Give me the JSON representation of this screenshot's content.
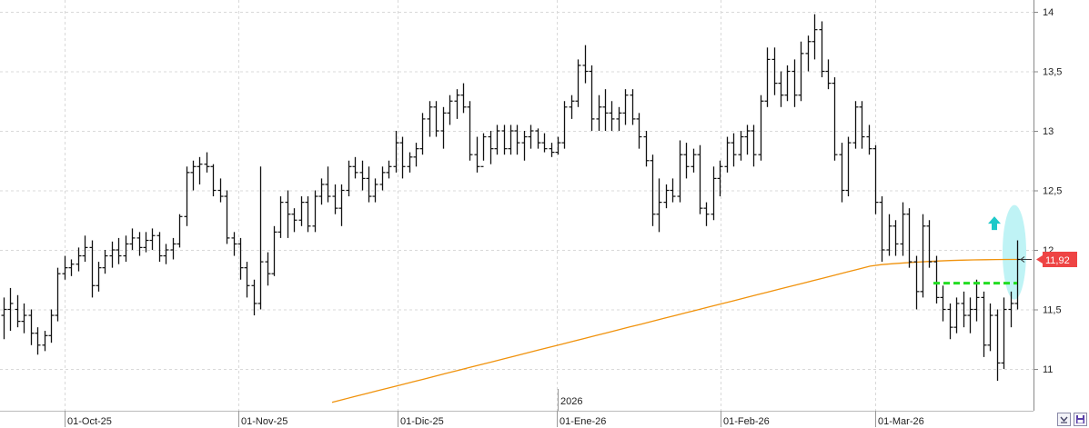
{
  "chart_data": {
    "type": "ohlc",
    "title": "",
    "xlabel": "",
    "ylabel": "",
    "ylim": [
      10.65,
      14.05
    ],
    "y_ticks": [
      "14",
      "13,5",
      "13",
      "12,5",
      "12",
      "11,5",
      "11"
    ],
    "y_tick_values": [
      14,
      13.5,
      13,
      12.5,
      12,
      11.5,
      11
    ],
    "x_labels": [
      {
        "label": "01-Oct-25",
        "date": "2025-10-01"
      },
      {
        "label": "01-Nov-25",
        "date": "2025-11-01"
      },
      {
        "label": "01-Dic-25",
        "date": "2025-12-01"
      },
      {
        "label": "01-Ene-26",
        "date": "2026-01-01"
      },
      {
        "label": "01-Feb-26",
        "date": "2026-02-01"
      },
      {
        "label": "01-Mar-26",
        "date": "2026-03-01"
      }
    ],
    "year_marker": {
      "label": "2026",
      "date": "2026-01-01"
    },
    "last_price": 11.92,
    "last_price_label": "11,92",
    "grid": true,
    "bars": [
      [
        11.45,
        11.6,
        11.25,
        11.5
      ],
      [
        11.5,
        11.68,
        11.32,
        11.55
      ],
      [
        11.5,
        11.62,
        11.35,
        11.4
      ],
      [
        11.4,
        11.55,
        11.3,
        11.45
      ],
      [
        11.45,
        11.5,
        11.2,
        11.3
      ],
      [
        11.3,
        11.35,
        11.12,
        11.2
      ],
      [
        11.2,
        11.32,
        11.15,
        11.28
      ],
      [
        11.28,
        11.5,
        11.22,
        11.45
      ],
      [
        11.45,
        11.85,
        11.4,
        11.8
      ],
      [
        11.8,
        11.95,
        11.75,
        11.85
      ],
      [
        11.85,
        11.92,
        11.78,
        11.88
      ],
      [
        11.88,
        12.02,
        11.82,
        11.95
      ],
      [
        11.95,
        12.12,
        11.9,
        12.02
      ],
      [
        12.02,
        12.08,
        11.6,
        11.7
      ],
      [
        11.7,
        11.9,
        11.65,
        11.85
      ],
      [
        11.85,
        12.0,
        11.8,
        11.95
      ],
      [
        11.95,
        12.07,
        11.85,
        12.0
      ],
      [
        12.0,
        12.1,
        11.88,
        11.95
      ],
      [
        11.95,
        12.12,
        11.9,
        12.05
      ],
      [
        12.05,
        12.18,
        12.0,
        12.1
      ],
      [
        12.1,
        12.15,
        11.95,
        12.02
      ],
      [
        12.02,
        12.15,
        11.98,
        12.08
      ],
      [
        12.08,
        12.18,
        12.0,
        12.12
      ],
      [
        12.12,
        12.15,
        11.9,
        11.95
      ],
      [
        11.95,
        12.05,
        11.88,
        12.0
      ],
      [
        12.0,
        12.1,
        11.92,
        12.05
      ],
      [
        12.05,
        12.3,
        12.02,
        12.28
      ],
      [
        12.28,
        12.7,
        12.2,
        12.65
      ],
      [
        12.65,
        12.75,
        12.5,
        12.7
      ],
      [
        12.7,
        12.78,
        12.55,
        12.72
      ],
      [
        12.72,
        12.82,
        12.65,
        12.7
      ],
      [
        12.7,
        12.72,
        12.45,
        12.5
      ],
      [
        12.5,
        12.6,
        12.4,
        12.45
      ],
      [
        12.45,
        12.5,
        12.05,
        12.1
      ],
      [
        12.1,
        12.15,
        11.95,
        12.05
      ],
      [
        12.05,
        12.1,
        11.75,
        11.85
      ],
      [
        11.85,
        11.9,
        11.6,
        11.7
      ],
      [
        11.7,
        11.75,
        11.45,
        11.55
      ],
      [
        11.55,
        12.7,
        11.5,
        11.9
      ],
      [
        11.9,
        11.98,
        11.7,
        11.8
      ],
      [
        11.8,
        12.2,
        11.78,
        12.15
      ],
      [
        12.15,
        12.45,
        12.1,
        12.4
      ],
      [
        12.4,
        12.5,
        12.1,
        12.3
      ],
      [
        12.3,
        12.35,
        12.15,
        12.25
      ],
      [
        12.25,
        12.45,
        12.2,
        12.4
      ],
      [
        12.4,
        12.45,
        12.15,
        12.2
      ],
      [
        12.2,
        12.5,
        12.15,
        12.45
      ],
      [
        12.45,
        12.6,
        12.38,
        12.55
      ],
      [
        12.55,
        12.7,
        12.4,
        12.45
      ],
      [
        12.45,
        12.55,
        12.3,
        12.35
      ],
      [
        12.35,
        12.55,
        12.2,
        12.5
      ],
      [
        12.5,
        12.75,
        12.45,
        12.7
      ],
      [
        12.7,
        12.78,
        12.6,
        12.65
      ],
      [
        12.65,
        12.75,
        12.5,
        12.6
      ],
      [
        12.6,
        12.7,
        12.4,
        12.45
      ],
      [
        12.45,
        12.6,
        12.4,
        12.55
      ],
      [
        12.55,
        12.7,
        12.5,
        12.65
      ],
      [
        12.65,
        12.75,
        12.6,
        12.7
      ],
      [
        12.7,
        13.0,
        12.65,
        12.9
      ],
      [
        12.9,
        12.95,
        12.6,
        12.7
      ],
      [
        12.7,
        12.82,
        12.65,
        12.78
      ],
      [
        12.78,
        12.9,
        12.7,
        12.85
      ],
      [
        12.85,
        13.15,
        12.8,
        13.1
      ],
      [
        13.1,
        13.25,
        12.95,
        13.2
      ],
      [
        13.2,
        13.25,
        12.95,
        13.0
      ],
      [
        13.0,
        13.2,
        12.85,
        13.15
      ],
      [
        13.15,
        13.3,
        13.05,
        13.25
      ],
      [
        13.25,
        13.35,
        13.1,
        13.3
      ],
      [
        13.3,
        13.4,
        13.15,
        13.2
      ],
      [
        13.2,
        13.25,
        12.75,
        12.8
      ],
      [
        12.8,
        12.95,
        12.65,
        12.7
      ],
      [
        12.7,
        12.98,
        12.75,
        12.95
      ],
      [
        12.95,
        13.0,
        12.72,
        12.85
      ],
      [
        12.85,
        13.05,
        12.8,
        13.0
      ],
      [
        13.0,
        13.05,
        12.8,
        12.85
      ],
      [
        12.85,
        13.05,
        12.8,
        13.0
      ],
      [
        13.0,
        13.05,
        12.8,
        12.9
      ],
      [
        12.9,
        13.0,
        12.75,
        12.95
      ],
      [
        12.95,
        13.05,
        12.85,
        13.0
      ],
      [
        13.0,
        13.02,
        12.85,
        12.9
      ],
      [
        12.9,
        12.98,
        12.82,
        12.85
      ],
      [
        12.85,
        12.9,
        12.78,
        12.82
      ],
      [
        12.82,
        12.95,
        12.8,
        12.9
      ],
      [
        12.9,
        13.25,
        12.85,
        13.2
      ],
      [
        13.2,
        13.3,
        13.1,
        13.25
      ],
      [
        13.25,
        13.6,
        13.2,
        13.55
      ],
      [
        13.55,
        13.72,
        13.4,
        13.5
      ],
      [
        13.5,
        13.55,
        13.0,
        13.1
      ],
      [
        13.1,
        13.3,
        13.0,
        13.2
      ],
      [
        13.2,
        13.35,
        13.0,
        13.15
      ],
      [
        13.15,
        13.25,
        13.0,
        13.1
      ],
      [
        13.1,
        13.2,
        13.0,
        13.15
      ],
      [
        13.15,
        13.35,
        13.05,
        13.3
      ],
      [
        13.3,
        13.35,
        13.05,
        13.1
      ],
      [
        13.1,
        13.15,
        12.85,
        12.95
      ],
      [
        12.95,
        13.0,
        12.7,
        12.75
      ],
      [
        12.75,
        12.8,
        12.2,
        12.3
      ],
      [
        12.3,
        12.6,
        12.15,
        12.4
      ],
      [
        12.4,
        12.55,
        12.35,
        12.5
      ],
      [
        12.5,
        12.6,
        12.4,
        12.45
      ],
      [
        12.45,
        12.92,
        12.4,
        12.8
      ],
      [
        12.8,
        12.9,
        12.6,
        12.7
      ],
      [
        12.7,
        12.85,
        12.65,
        12.8
      ],
      [
        12.8,
        12.88,
        12.3,
        12.35
      ],
      [
        12.35,
        12.4,
        12.2,
        12.3
      ],
      [
        12.3,
        12.7,
        12.25,
        12.6
      ],
      [
        12.6,
        12.75,
        12.45,
        12.7
      ],
      [
        12.7,
        12.95,
        12.65,
        12.9
      ],
      [
        12.9,
        12.98,
        12.7,
        12.8
      ],
      [
        12.8,
        13.0,
        12.75,
        12.95
      ],
      [
        12.95,
        13.05,
        12.8,
        13.0
      ],
      [
        13.0,
        13.05,
        12.7,
        12.8
      ],
      [
        12.8,
        13.3,
        12.75,
        13.25
      ],
      [
        13.25,
        13.7,
        13.2,
        13.6
      ],
      [
        13.6,
        13.7,
        13.3,
        13.4
      ],
      [
        13.4,
        13.5,
        13.2,
        13.3
      ],
      [
        13.3,
        13.55,
        13.25,
        13.5
      ],
      [
        13.5,
        13.6,
        13.2,
        13.3
      ],
      [
        13.3,
        13.75,
        13.25,
        13.65
      ],
      [
        13.65,
        13.8,
        13.5,
        13.75
      ],
      [
        13.75,
        13.98,
        13.6,
        13.85
      ],
      [
        13.85,
        13.92,
        13.45,
        13.5
      ],
      [
        13.5,
        13.6,
        13.35,
        13.4
      ],
      [
        13.4,
        13.45,
        12.75,
        12.8
      ],
      [
        12.8,
        12.9,
        12.4,
        12.5
      ],
      [
        12.5,
        12.95,
        12.45,
        12.9
      ],
      [
        12.9,
        13.25,
        12.85,
        13.2
      ],
      [
        13.2,
        13.25,
        12.85,
        12.95
      ],
      [
        12.95,
        13.05,
        12.8,
        12.85
      ],
      [
        12.85,
        12.88,
        12.3,
        12.4
      ],
      [
        12.4,
        12.45,
        11.9,
        12.0
      ],
      [
        12.0,
        12.3,
        11.95,
        12.2
      ],
      [
        12.2,
        12.25,
        11.95,
        12.05
      ],
      [
        12.05,
        12.4,
        11.95,
        12.3
      ],
      [
        12.3,
        12.35,
        11.85,
        11.9
      ],
      [
        11.9,
        11.95,
        11.5,
        11.65
      ],
      [
        11.65,
        12.3,
        11.6,
        12.2
      ],
      [
        12.2,
        12.25,
        11.85,
        11.9
      ],
      [
        11.9,
        11.95,
        11.55,
        11.6
      ],
      [
        11.6,
        11.7,
        11.4,
        11.5
      ],
      [
        11.5,
        11.55,
        11.25,
        11.35
      ],
      [
        11.35,
        11.6,
        11.3,
        11.55
      ],
      [
        11.55,
        11.65,
        11.35,
        11.45
      ],
      [
        11.45,
        11.6,
        11.3,
        11.5
      ],
      [
        11.5,
        11.75,
        11.4,
        11.6
      ],
      [
        11.6,
        11.65,
        11.1,
        11.2
      ],
      [
        11.2,
        11.55,
        11.15,
        11.45
      ],
      [
        11.45,
        11.5,
        10.9,
        11.05
      ],
      [
        11.05,
        11.6,
        11.0,
        11.5
      ],
      [
        11.5,
        11.65,
        11.35,
        11.55
      ],
      [
        11.55,
        12.08,
        11.5,
        11.92
      ]
    ],
    "series": [
      {
        "type": "line",
        "color": "#f0920c",
        "start_value": 10.72,
        "end_value": 11.92
      }
    ],
    "overlays": [
      {
        "type": "dashed-level",
        "value": 11.72,
        "color": "#22dd22"
      },
      {
        "type": "arrow-up",
        "color": "#1ec9c9"
      },
      {
        "type": "ellipse-highlight",
        "color": "#bff3f5"
      }
    ]
  },
  "colors": {
    "bars": "#111111",
    "grid": "#d9d9d9",
    "price_tag": "#ee4444",
    "axis": "#888888"
  },
  "controls": {
    "collapse_icon": "collapse-icon",
    "save_icon": "save-icon"
  }
}
